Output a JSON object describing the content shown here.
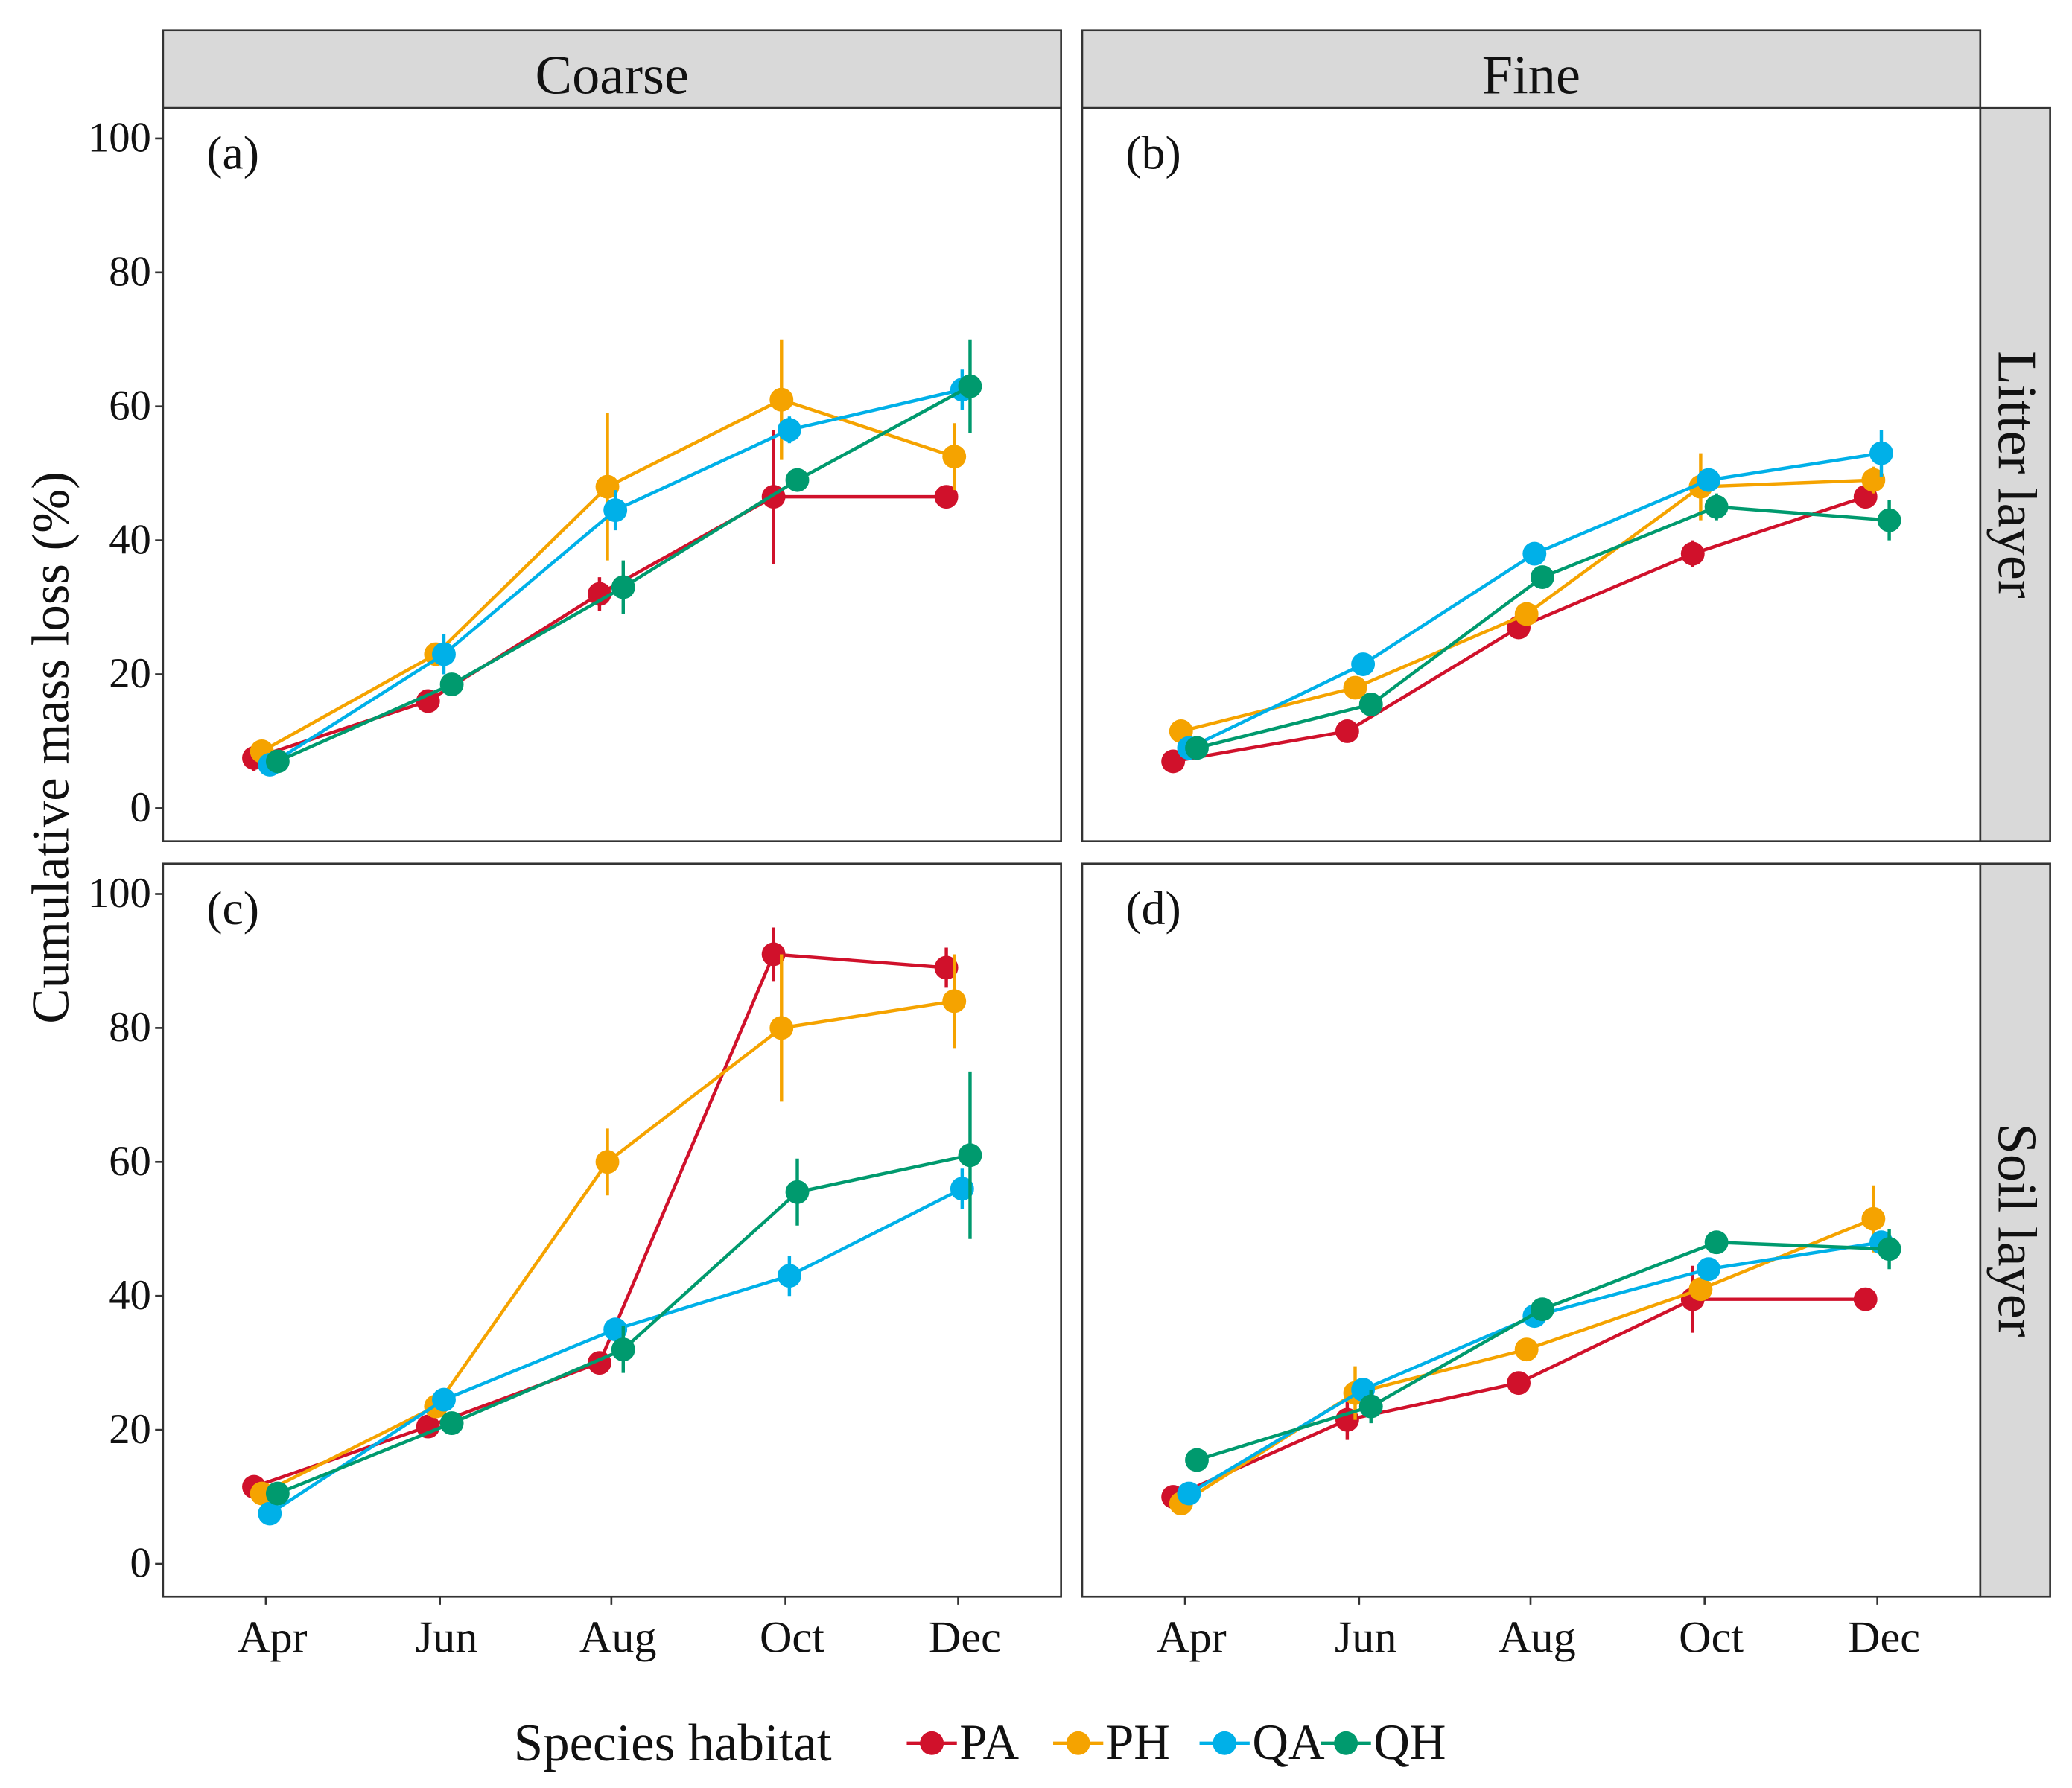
{
  "chart_data": {
    "type": "line",
    "ylabel": "Cumulative mass loss (%)",
    "ylim": [
      0,
      100
    ],
    "yticks": [
      "0",
      "20",
      "40",
      "60",
      "80",
      "100"
    ],
    "categories": [
      "Apr",
      "Jun",
      "Aug",
      "Oct",
      "Dec"
    ],
    "col_facets": [
      "Coarse",
      "Fine"
    ],
    "row_facets": [
      "Litter layer",
      "Soil layer"
    ],
    "legend": {
      "title": "Species habitat",
      "placement": "bottom"
    },
    "colors": {
      "PA": "#d0112b",
      "PH": "#f5a300",
      "QA": "#00b0e8",
      "QH": "#009a6e"
    },
    "series_names": [
      "PA",
      "PH",
      "QA",
      "QH"
    ],
    "panels": [
      {
        "label": "(a)",
        "row": 0,
        "col": 0,
        "series": [
          {
            "name": "PA",
            "values": [
              7.5,
              16,
              32,
              46.5,
              46.5
            ],
            "err": [
              2,
              1,
              2.5,
              10,
              1
            ]
          },
          {
            "name": "PH",
            "values": [
              8.5,
              23,
              48,
              61,
              52.5
            ],
            "err": [
              1.5,
              1,
              11,
              9,
              5
            ]
          },
          {
            "name": "QA",
            "values": [
              6.5,
              23,
              44.5,
              56.5,
              62.5
            ],
            "err": [
              1,
              3,
              3,
              2,
              3
            ]
          },
          {
            "name": "QH",
            "values": [
              7,
              18.5,
              33,
              49,
              63
            ],
            "err": [
              1,
              1,
              4,
              1,
              7
            ]
          }
        ]
      },
      {
        "label": "(b)",
        "row": 0,
        "col": 1,
        "series": [
          {
            "name": "PA",
            "values": [
              7,
              11.5,
              27,
              38,
              46.5
            ],
            "err": [
              0.5,
              0.5,
              1,
              2,
              1
            ]
          },
          {
            "name": "PH",
            "values": [
              11.5,
              18,
              29,
              48,
              49
            ],
            "err": [
              0.5,
              0.5,
              1,
              5,
              2
            ]
          },
          {
            "name": "QA",
            "values": [
              9,
              21.5,
              38,
              49,
              53
            ],
            "err": [
              0.5,
              1.5,
              1,
              1.5,
              3.5
            ]
          },
          {
            "name": "QH",
            "values": [
              9,
              15.5,
              34.5,
              45,
              43
            ],
            "err": [
              0.5,
              1,
              1,
              2,
              3
            ]
          }
        ]
      },
      {
        "label": "(c)",
        "row": 1,
        "col": 0,
        "series": [
          {
            "name": "PA",
            "values": [
              11.5,
              20.5,
              30,
              91,
              89
            ],
            "err": [
              1,
              1,
              1,
              4,
              3
            ]
          },
          {
            "name": "PH",
            "values": [
              10.5,
              23.5,
              60,
              80,
              84
            ],
            "err": [
              1,
              1,
              5,
              11,
              7
            ]
          },
          {
            "name": "QA",
            "values": [
              7.5,
              24.5,
              35,
              43,
              56
            ],
            "err": [
              1,
              1,
              1,
              3,
              3
            ]
          },
          {
            "name": "QH",
            "values": [
              10.5,
              21,
              32,
              55.5,
              61
            ],
            "err": [
              1,
              1,
              3.5,
              5,
              12.5
            ]
          }
        ]
      },
      {
        "label": "(d)",
        "row": 1,
        "col": 1,
        "series": [
          {
            "name": "PA",
            "values": [
              10,
              21.5,
              27,
              39.5,
              39.5
            ],
            "err": [
              0.5,
              3,
              1,
              5,
              1
            ]
          },
          {
            "name": "PH",
            "values": [
              9,
              25.5,
              32,
              41,
              51.5
            ],
            "err": [
              1,
              4,
              1,
              1,
              5
            ]
          },
          {
            "name": "QA",
            "values": [
              10.5,
              26,
              37,
              44,
              48
            ],
            "err": [
              1,
              1,
              1,
              1,
              1
            ]
          },
          {
            "name": "QH",
            "values": [
              15.5,
              23.5,
              38,
              48,
              47
            ],
            "err": [
              0.5,
              2.5,
              1,
              1.5,
              3
            ]
          }
        ]
      }
    ]
  }
}
